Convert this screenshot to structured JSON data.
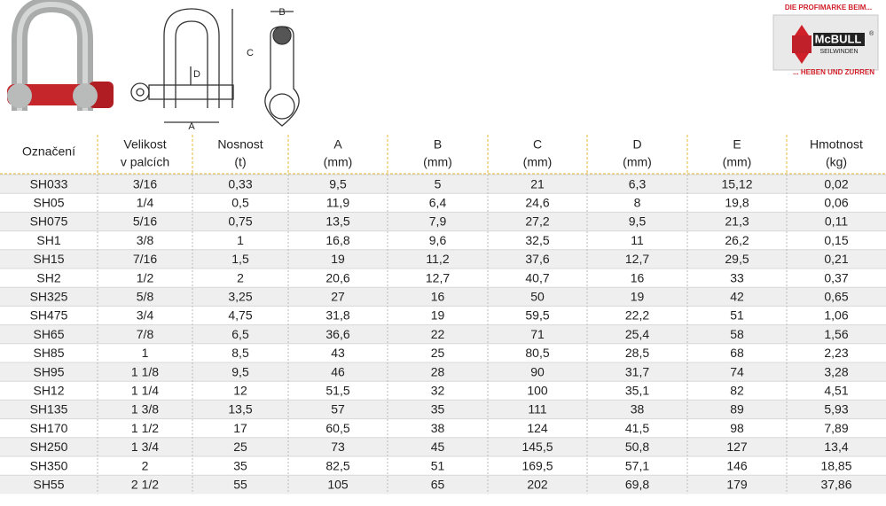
{
  "logo": {
    "tagline_top": "DIE PROFIMARKE BEIM...",
    "brand": "McBULL",
    "registered": "®",
    "brand_sub": "SEILWINDEN",
    "tagline_bottom": "... HEBEN UND ZURREN"
  },
  "diagram": {
    "labels": [
      "A",
      "B",
      "C",
      "D"
    ]
  },
  "table": {
    "header": [
      [
        "Označení"
      ],
      [
        "Velikost",
        "v palcích"
      ],
      [
        "Nosnost",
        "(t)"
      ],
      [
        "A",
        "(mm)"
      ],
      [
        "B",
        "(mm)"
      ],
      [
        "C",
        "(mm)"
      ],
      [
        "D",
        "(mm)"
      ],
      [
        "E",
        "(mm)"
      ],
      [
        "Hmotnost",
        "(kg)"
      ]
    ],
    "rows": [
      [
        "SH033",
        "3/16",
        "0,33",
        "9,5",
        "5",
        "21",
        "6,3",
        "15,12",
        "0,02"
      ],
      [
        "SH05",
        "1/4",
        "0,5",
        "11,9",
        "6,4",
        "24,6",
        "8",
        "19,8",
        "0,06"
      ],
      [
        "SH075",
        "5/16",
        "0,75",
        "13,5",
        "7,9",
        "27,2",
        "9,5",
        "21,3",
        "0,11"
      ],
      [
        "SH1",
        "3/8",
        "1",
        "16,8",
        "9,6",
        "32,5",
        "11",
        "26,2",
        "0,15"
      ],
      [
        "SH15",
        "7/16",
        "1,5",
        "19",
        "11,2",
        "37,6",
        "12,7",
        "29,5",
        "0,21"
      ],
      [
        "SH2",
        "1/2",
        "2",
        "20,6",
        "12,7",
        "40,7",
        "16",
        "33",
        "0,37"
      ],
      [
        "SH325",
        "5/8",
        "3,25",
        "27",
        "16",
        "50",
        "19",
        "42",
        "0,65"
      ],
      [
        "SH475",
        "3/4",
        "4,75",
        "31,8",
        "19",
        "59,5",
        "22,2",
        "51",
        "1,06"
      ],
      [
        "SH65",
        "7/8",
        "6,5",
        "36,6",
        "22",
        "71",
        "25,4",
        "58",
        "1,56"
      ],
      [
        "SH85",
        "1",
        "8,5",
        "43",
        "25",
        "80,5",
        "28,5",
        "68",
        "2,23"
      ],
      [
        "SH95",
        "1 1/8",
        "9,5",
        "46",
        "28",
        "90",
        "31,7",
        "74",
        "3,28"
      ],
      [
        "SH12",
        "1 1/4",
        "12",
        "51,5",
        "32",
        "100",
        "35,1",
        "82",
        "4,51"
      ],
      [
        "SH135",
        "1 3/8",
        "13,5",
        "57",
        "35",
        "111",
        "38",
        "89",
        "5,93"
      ],
      [
        "SH170",
        "1 1/2",
        "17",
        "60,5",
        "38",
        "124",
        "41,5",
        "98",
        "7,89"
      ],
      [
        "SH250",
        "1 3/4",
        "25",
        "73",
        "45",
        "145,5",
        "50,8",
        "127",
        "13,4"
      ],
      [
        "SH350",
        "2",
        "35",
        "82,5",
        "51",
        "169,5",
        "57,1",
        "146",
        "18,85"
      ],
      [
        "SH55",
        "2 1/2",
        "55",
        "105",
        "65",
        "202",
        "69,8",
        "179",
        "37,86"
      ]
    ]
  }
}
